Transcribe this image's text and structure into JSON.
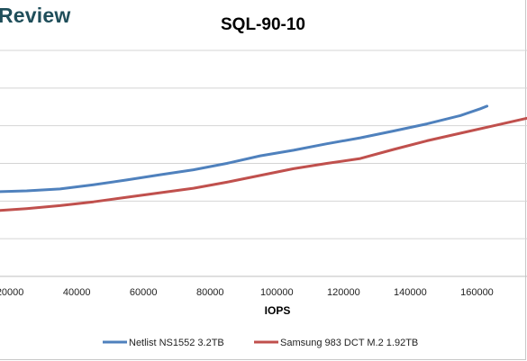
{
  "brand": {
    "text": "Review"
  },
  "chart_data": {
    "type": "line",
    "title": "SQL-90-10",
    "xlabel": "IOPS",
    "ylabel": "",
    "xlim": [
      17000,
      175000
    ],
    "ylim": [
      0,
      6
    ],
    "x_ticks": [
      20000,
      40000,
      60000,
      80000,
      100000,
      120000,
      140000,
      160000
    ],
    "x_tick_labels": [
      "20000",
      "40000",
      "60000",
      "80000",
      "100000",
      "120000",
      "140000",
      "160000"
    ],
    "y_gridlines": [
      1,
      2,
      3,
      4,
      5,
      6
    ],
    "grid": true,
    "legend": "bottom",
    "series": [
      {
        "name": "Netlist NS1552 3.2TB",
        "color": "#4f81bd",
        "x": [
          17000,
          25000,
          35000,
          45000,
          55000,
          65000,
          75000,
          85000,
          95000,
          105000,
          115000,
          125000,
          135000,
          145000,
          155000,
          161000,
          163000
        ],
        "y": [
          2.25,
          2.27,
          2.32,
          2.43,
          2.56,
          2.7,
          2.83,
          3.0,
          3.2,
          3.35,
          3.52,
          3.68,
          3.86,
          4.05,
          4.27,
          4.45,
          4.52
        ]
      },
      {
        "name": "Samsung 983 DCT M.2 1.92TB",
        "color": "#c0504d",
        "x": [
          17000,
          25000,
          35000,
          45000,
          55000,
          65000,
          75000,
          85000,
          95000,
          105000,
          115000,
          125000,
          135000,
          145000,
          155000,
          165000,
          175000
        ],
        "y": [
          1.75,
          1.8,
          1.88,
          1.98,
          2.1,
          2.22,
          2.34,
          2.5,
          2.68,
          2.86,
          3.0,
          3.13,
          3.37,
          3.6,
          3.8,
          4.0,
          4.2
        ]
      }
    ]
  }
}
